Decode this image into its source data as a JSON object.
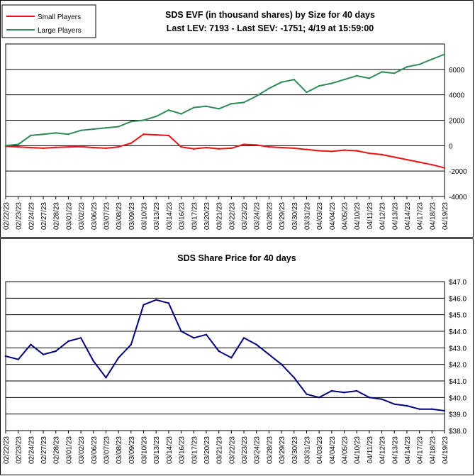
{
  "chart_data": [
    {
      "type": "line",
      "title": "SDS EVF (in thousand shares) by Size for 40 days",
      "subtitle": "Last LEV: 7193 - Last SEV: -1751; 4/19 at 15:59:00",
      "xlabel": "",
      "ylabel": "",
      "ylim": [
        -4000,
        8000
      ],
      "yticks": [
        -4000,
        -2000,
        0,
        2000,
        4000,
        6000
      ],
      "ytick_labels": [
        "-4000",
        "-2000",
        "0",
        "2000",
        "4000",
        "6000"
      ],
      "grid": true,
      "legend": "top-left",
      "x": [
        "02/22/23",
        "02/23/23",
        "02/24/23",
        "02/27/23",
        "02/28/23",
        "03/01/23",
        "03/02/23",
        "03/06/23",
        "03/07/23",
        "03/08/23",
        "03/09/23",
        "03/10/23",
        "03/13/23",
        "03/14/23",
        "03/16/23",
        "03/17/23",
        "03/20/23",
        "03/21/23",
        "03/22/23",
        "03/23/23",
        "03/24/23",
        "03/28/23",
        "03/29/23",
        "03/30/23",
        "03/31/23",
        "04/03/23",
        "04/04/23",
        "04/05/23",
        "04/10/23",
        "04/11/23",
        "04/12/23",
        "04/13/23",
        "04/14/23",
        "04/17/23",
        "04/18/23",
        "04/19/23"
      ],
      "series": [
        {
          "name": "Small Players",
          "color": "#ee1111",
          "values": [
            -50,
            -100,
            -150,
            -200,
            -130,
            -100,
            -80,
            -150,
            -200,
            -100,
            200,
            900,
            850,
            800,
            -100,
            -250,
            -150,
            -250,
            -200,
            100,
            50,
            -100,
            -150,
            -200,
            -300,
            -400,
            -450,
            -350,
            -400,
            -600,
            -700,
            -900,
            -1100,
            -1300,
            -1500,
            -1751
          ]
        },
        {
          "name": "Large Players",
          "color": "#2e8b57",
          "values": [
            0,
            100,
            800,
            900,
            1000,
            900,
            1200,
            1300,
            1400,
            1500,
            1900,
            2000,
            2300,
            2800,
            2500,
            3000,
            3100,
            2900,
            3300,
            3400,
            3900,
            4500,
            5000,
            5200,
            4200,
            4700,
            4900,
            5200,
            5500,
            5300,
            5800,
            5700,
            6200,
            6400,
            6800,
            7193
          ]
        }
      ]
    },
    {
      "type": "line",
      "title": "SDS Share Price for 40 days",
      "xlabel": "",
      "ylabel": "",
      "ylim": [
        38.0,
        47.0
      ],
      "yticks": [
        38,
        39,
        40,
        41,
        42,
        43,
        44,
        45,
        46,
        47
      ],
      "ytick_labels": [
        "$38.0",
        "$39.0",
        "$40.0",
        "$41.0",
        "$42.0",
        "$43.0",
        "$44.0",
        "$45.0",
        "$46.0",
        "$47.0"
      ],
      "grid": true,
      "legend": "none",
      "x": [
        "02/22/23",
        "02/23/23",
        "02/24/23",
        "02/27/23",
        "02/28/23",
        "03/01/23",
        "03/02/23",
        "03/06/23",
        "03/07/23",
        "03/08/23",
        "03/09/23",
        "03/10/23",
        "03/13/23",
        "03/14/23",
        "03/16/23",
        "03/17/23",
        "03/20/23",
        "03/21/23",
        "03/22/23",
        "03/23/23",
        "03/24/23",
        "03/28/23",
        "03/29/23",
        "03/30/23",
        "03/31/23",
        "04/03/23",
        "04/04/23",
        "04/05/23",
        "04/10/23",
        "04/11/23",
        "04/12/23",
        "04/13/23",
        "04/14/23",
        "04/17/23",
        "04/18/23",
        "04/19/23"
      ],
      "series": [
        {
          "color": "#00007f",
          "values": [
            42.5,
            42.3,
            43.2,
            42.6,
            42.8,
            43.4,
            43.6,
            42.2,
            41.2,
            42.4,
            43.2,
            45.6,
            45.9,
            45.7,
            44.0,
            43.6,
            43.8,
            42.8,
            42.4,
            43.6,
            43.2,
            42.6,
            42.0,
            41.2,
            40.2,
            40.0,
            40.4,
            40.3,
            40.4,
            40.0,
            39.9,
            39.6,
            39.5,
            39.3,
            39.3,
            39.2
          ]
        }
      ]
    }
  ]
}
